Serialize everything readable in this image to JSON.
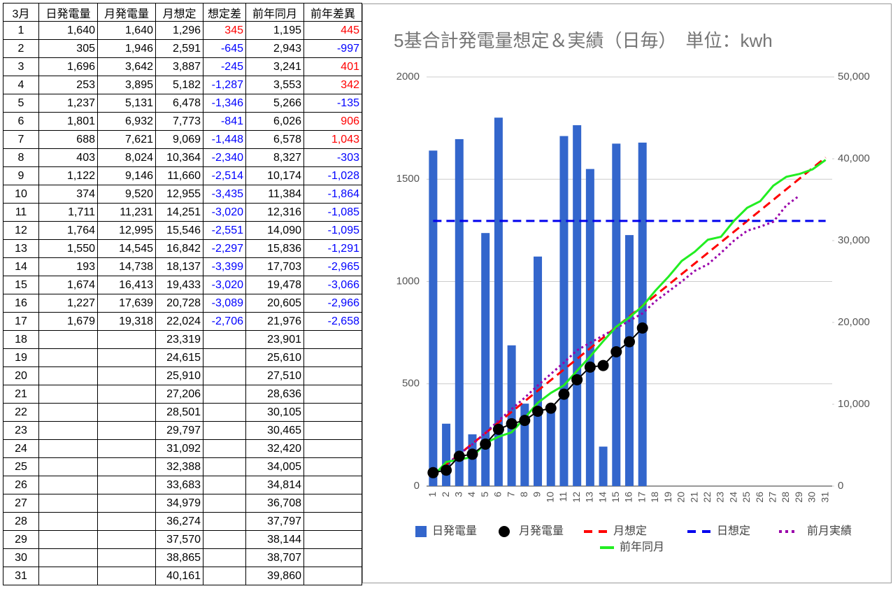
{
  "table": {
    "header": [
      "3月",
      "日発電量",
      "月発電量",
      "月想定",
      "想定差",
      "前年同月",
      "前年差異"
    ],
    "rows": [
      [
        "1",
        "1,640",
        "1,640",
        "1,296",
        "345",
        "1,195",
        "445"
      ],
      [
        "2",
        "305",
        "1,946",
        "2,591",
        "-645",
        "2,943",
        "-997"
      ],
      [
        "3",
        "1,696",
        "3,642",
        "3,887",
        "-245",
        "3,241",
        "401"
      ],
      [
        "4",
        "253",
        "3,895",
        "5,182",
        "-1,287",
        "3,553",
        "342"
      ],
      [
        "5",
        "1,237",
        "5,131",
        "6,478",
        "-1,346",
        "5,266",
        "-135"
      ],
      [
        "6",
        "1,801",
        "6,932",
        "7,773",
        "-841",
        "6,026",
        "906"
      ],
      [
        "7",
        "688",
        "7,621",
        "9,069",
        "-1,448",
        "6,578",
        "1,043"
      ],
      [
        "8",
        "403",
        "8,024",
        "10,364",
        "-2,340",
        "8,327",
        "-303"
      ],
      [
        "9",
        "1,122",
        "9,146",
        "11,660",
        "-2,514",
        "10,174",
        "-1,028"
      ],
      [
        "10",
        "374",
        "9,520",
        "12,955",
        "-3,435",
        "11,384",
        "-1,864"
      ],
      [
        "11",
        "1,711",
        "11,231",
        "14,251",
        "-3,020",
        "12,316",
        "-1,085"
      ],
      [
        "12",
        "1,764",
        "12,995",
        "15,546",
        "-2,551",
        "14,090",
        "-1,095"
      ],
      [
        "13",
        "1,550",
        "14,545",
        "16,842",
        "-2,297",
        "15,836",
        "-1,291"
      ],
      [
        "14",
        "193",
        "14,738",
        "18,137",
        "-3,399",
        "17,703",
        "-2,965"
      ],
      [
        "15",
        "1,674",
        "16,413",
        "19,433",
        "-3,020",
        "19,478",
        "-3,066"
      ],
      [
        "16",
        "1,227",
        "17,639",
        "20,728",
        "-3,089",
        "20,605",
        "-2,966"
      ],
      [
        "17",
        "1,679",
        "19,318",
        "22,024",
        "-2,706",
        "21,976",
        "-2,658"
      ],
      [
        "18",
        null,
        null,
        "23,319",
        null,
        "23,901",
        null
      ],
      [
        "19",
        null,
        null,
        "24,615",
        null,
        "25,610",
        null
      ],
      [
        "20",
        null,
        null,
        "25,910",
        null,
        "27,510",
        null
      ],
      [
        "21",
        null,
        null,
        "27,206",
        null,
        "28,636",
        null
      ],
      [
        "22",
        null,
        null,
        "28,501",
        null,
        "30,105",
        null
      ],
      [
        "23",
        null,
        null,
        "29,797",
        null,
        "30,465",
        null
      ],
      [
        "24",
        null,
        null,
        "31,092",
        null,
        "32,420",
        null
      ],
      [
        "25",
        null,
        null,
        "32,388",
        null,
        "34,005",
        null
      ],
      [
        "26",
        null,
        null,
        "33,683",
        null,
        "34,814",
        null
      ],
      [
        "27",
        null,
        null,
        "34,979",
        null,
        "36,708",
        null
      ],
      [
        "28",
        null,
        null,
        "36,274",
        null,
        "37,797",
        null
      ],
      [
        "29",
        null,
        null,
        "37,570",
        null,
        "38,144",
        null
      ],
      [
        "30",
        null,
        null,
        "38,865",
        null,
        "38,707",
        null
      ],
      [
        "31",
        null,
        null,
        "40,161",
        null,
        "39,860",
        null
      ]
    ]
  },
  "chart_data": {
    "type": "combo",
    "title": "5基合計発電量想定＆実績（日毎）　単位：kwh",
    "categories": [
      "1",
      "2",
      "3",
      "4",
      "5",
      "6",
      "7",
      "8",
      "9",
      "10",
      "11",
      "12",
      "13",
      "14",
      "15",
      "16",
      "17",
      "18",
      "19",
      "20",
      "21",
      "22",
      "23",
      "24",
      "25",
      "26",
      "27",
      "28",
      "29",
      "30",
      "31"
    ],
    "ylim": [
      0,
      2000
    ],
    "yticks": [
      0,
      500,
      1000,
      1500,
      2000
    ],
    "y2lim": [
      0,
      50000
    ],
    "y2ticks": [
      0,
      {
        "value": 10000,
        "label": "10,000"
      },
      {
        "value": 20000,
        "label": "20,000"
      },
      {
        "value": 30000,
        "label": "30,000"
      },
      {
        "value": 40000,
        "label": "40,000"
      },
      {
        "value": 50000,
        "label": "50,000"
      }
    ],
    "grid": true,
    "series": [
      {
        "name": "日発電量",
        "type": "bar",
        "color": "#3366cc",
        "axis": "y",
        "values": [
          1640,
          305,
          1696,
          253,
          1237,
          1801,
          688,
          403,
          1122,
          374,
          1711,
          1764,
          1550,
          193,
          1674,
          1227,
          1679,
          null,
          null,
          null,
          null,
          null,
          null,
          null,
          null,
          null,
          null,
          null,
          null,
          null,
          null
        ]
      },
      {
        "name": "月発電量",
        "type": "scatter-line",
        "color": "#000000",
        "axis": "y2",
        "values": [
          1640,
          1946,
          3642,
          3895,
          5131,
          6932,
          7621,
          8024,
          9146,
          9520,
          11231,
          12995,
          14545,
          14738,
          16413,
          17639,
          19318,
          null,
          null,
          null,
          null,
          null,
          null,
          null,
          null,
          null,
          null,
          null,
          null,
          null,
          null
        ]
      },
      {
        "name": "月想定",
        "type": "line",
        "style": "dashed",
        "color": "#ff0000",
        "axis": "y2",
        "values": [
          1296,
          2591,
          3887,
          5182,
          6478,
          7773,
          9069,
          10364,
          11660,
          12955,
          14251,
          15546,
          16842,
          18137,
          19433,
          20728,
          22024,
          23319,
          24615,
          25910,
          27206,
          28501,
          29797,
          31092,
          32388,
          33683,
          34979,
          36274,
          37570,
          38865,
          40161
        ]
      },
      {
        "name": "日想定",
        "type": "line",
        "style": "dashed",
        "color": "#0000ee",
        "axis": "y",
        "values": [
          1296,
          1296,
          1296,
          1296,
          1296,
          1296,
          1296,
          1296,
          1296,
          1296,
          1296,
          1296,
          1296,
          1296,
          1296,
          1296,
          1296,
          1296,
          1296,
          1296,
          1296,
          1296,
          1296,
          1296,
          1296,
          1296,
          1296,
          1296,
          1296,
          1296,
          1296
        ]
      },
      {
        "name": "前月実績",
        "type": "line",
        "style": "dotted",
        "color": "#9900aa",
        "axis": "y2",
        "values": [
          1300,
          2600,
          3900,
          5100,
          6500,
          8000,
          9400,
          10800,
          12300,
          13700,
          15100,
          16600,
          17500,
          18400,
          19300,
          20200,
          21100,
          22600,
          23800,
          25000,
          26300,
          27100,
          28500,
          30000,
          31200,
          31700,
          32300,
          34300,
          35500,
          null,
          null
        ]
      },
      {
        "name": "前年同月",
        "type": "line",
        "color": "#22ee22",
        "axis": "y2",
        "values": [
          1195,
          2943,
          3241,
          3553,
          5266,
          6026,
          6578,
          8327,
          10174,
          11384,
          12316,
          14090,
          15836,
          17703,
          19478,
          20605,
          21976,
          23901,
          25610,
          27510,
          28636,
          30105,
          30465,
          32420,
          34005,
          34814,
          36708,
          37797,
          38144,
          38707,
          39860
        ]
      }
    ]
  }
}
